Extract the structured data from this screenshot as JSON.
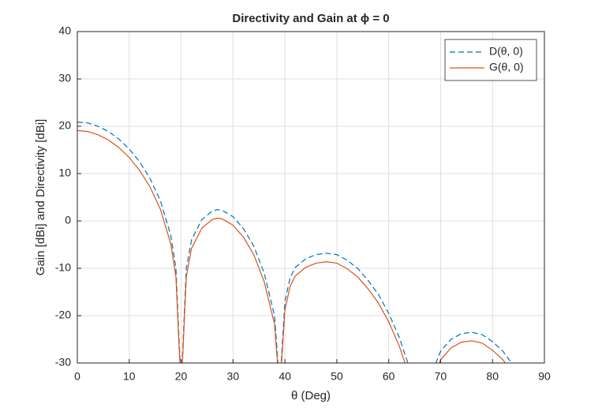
{
  "chart_data": {
    "type": "line",
    "title": "Directivity and Gain at ϕ = 0",
    "xlabel": "θ (Deg)",
    "ylabel": "Gain [dBi] and Directivity [dBi]",
    "x": [
      0,
      2,
      4,
      6,
      8,
      10,
      12,
      14,
      16,
      18,
      19,
      20,
      21,
      22,
      24,
      26,
      27,
      28,
      30,
      32,
      34,
      36,
      38,
      39,
      40,
      41,
      42,
      44,
      46,
      48,
      50,
      52,
      54,
      56,
      58,
      60,
      62,
      64,
      66,
      68,
      70,
      72,
      74,
      76,
      78,
      80,
      82,
      84,
      86
    ],
    "series": [
      {
        "name": "D(θ, 0)",
        "color": "#0072BD",
        "dash": true,
        "values": [
          20.9,
          20.7,
          20.0,
          18.9,
          17.3,
          15.2,
          12.5,
          9.0,
          4.3,
          -3,
          -10,
          -35,
          -10,
          -4,
          0.3,
          2.1,
          2.4,
          2.2,
          0.9,
          -1.6,
          -5.3,
          -11,
          -20,
          -35,
          -17,
          -12,
          -9.8,
          -8,
          -7.1,
          -6.8,
          -7.1,
          -8.3,
          -10,
          -12.5,
          -15.5,
          -19.5,
          -24.5,
          -31,
          -40,
          -33,
          -27.5,
          -25,
          -23.8,
          -23.5,
          -24,
          -25.5,
          -27.5,
          -30.5,
          -35
        ]
      },
      {
        "name": "G(θ, 0)",
        "color": "#D95319",
        "dash": false,
        "values": [
          19.1,
          18.9,
          18.2,
          17.1,
          15.5,
          13.4,
          10.7,
          7.2,
          2.5,
          -4.8,
          -11.8,
          -36,
          -11.8,
          -5.8,
          -1.5,
          0.3,
          0.6,
          0.4,
          -0.9,
          -3.4,
          -7.1,
          -12.8,
          -21.8,
          -36,
          -18.8,
          -13.8,
          -11.6,
          -9.8,
          -8.9,
          -8.6,
          -8.9,
          -10.1,
          -11.8,
          -14.3,
          -17.3,
          -21.3,
          -26.3,
          -32.8,
          -41.8,
          -34.8,
          -29.3,
          -26.8,
          -25.6,
          -25.3,
          -25.8,
          -27.3,
          -29.3,
          -32.3,
          -36.8
        ]
      }
    ],
    "xlim": [
      0,
      90
    ],
    "xticks": [
      0,
      10,
      20,
      30,
      40,
      50,
      60,
      70,
      80,
      90
    ],
    "ylim": [
      -30,
      40
    ],
    "yticks": [
      -30,
      -20,
      -10,
      0,
      10,
      20,
      30,
      40
    ],
    "grid": true,
    "legend": "northeast"
  }
}
